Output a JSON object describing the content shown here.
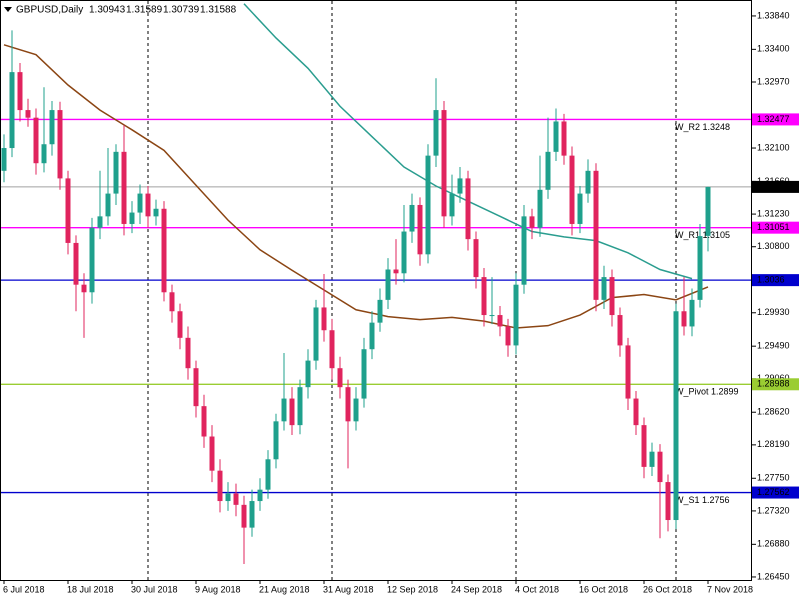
{
  "chart_data": {
    "type": "candlestick",
    "title": "GBPUSD,Daily",
    "categories": [
      "6 Jul 2018",
      null,
      null,
      null,
      null,
      null,
      null,
      null,
      "18 Jul 2018",
      null,
      null,
      null,
      null,
      null,
      null,
      null,
      "30 Jul 2018",
      null,
      null,
      null,
      null,
      null,
      null,
      null,
      "9 Aug 2018",
      null,
      null,
      null,
      null,
      null,
      null,
      null,
      "21 Aug 2018",
      null,
      null,
      null,
      null,
      null,
      null,
      null,
      "31 Aug 2018",
      null,
      null,
      null,
      null,
      null,
      null,
      null,
      "12 Sep 2018",
      null,
      null,
      null,
      null,
      null,
      null,
      null,
      "24 Sep 2018",
      null,
      null,
      null,
      null,
      null,
      null,
      null,
      "4 Oct 2018",
      null,
      null,
      null,
      null,
      null,
      null,
      null,
      "16 Oct 2018",
      null,
      null,
      null,
      null,
      null,
      null,
      null,
      "26 Oct 2018",
      null,
      null,
      null,
      null,
      null,
      null,
      null,
      "7 Nov 2018"
    ],
    "open": [
      1.318,
      1.321,
      1.331,
      1.326,
      1.325,
      1.319,
      1.3215,
      1.326,
      1.317,
      1.3085,
      1.303,
      1.302,
      1.3105,
      1.312,
      1.315,
      1.3205,
      1.311,
      1.3125,
      1.315,
      1.312,
      1.313,
      1.302,
      1.2995,
      1.296,
      1.292,
      1.287,
      1.283,
      1.2785,
      1.2745,
      1.2755,
      1.274,
      1.271,
      1.2745,
      1.276,
      1.28,
      1.285,
      1.288,
      1.2845,
      1.2895,
      1.293,
      1.3,
      1.297,
      1.292,
      1.2895,
      1.285,
      1.288,
      1.2945,
      1.298,
      1.301,
      1.305,
      1.3045,
      1.31,
      1.3135,
      1.307,
      1.32,
      1.326,
      1.312,
      1.315,
      1.317,
      1.309,
      1.304,
      1.299,
      1.299,
      1.2975,
      1.295,
      1.303,
      1.312,
      1.3105,
      1.3155,
      1.3205,
      1.3245,
      1.32,
      1.311,
      1.315,
      1.318,
      1.301,
      1.304,
      1.299,
      1.295,
      1.288,
      1.2845,
      1.279,
      1.281,
      1.277,
      1.272,
      1.2995,
      1.2975,
      1.301,
      1.30943
    ],
    "high": [
      1.3228,
      1.3365,
      1.3322,
      1.3275,
      1.3262,
      1.329,
      1.3272,
      1.3271,
      1.318,
      1.3095,
      1.3045,
      1.3118,
      1.318,
      1.321,
      1.3215,
      1.324,
      1.314,
      1.3162,
      1.316,
      1.3142,
      1.314,
      1.303,
      1.3005,
      1.2975,
      1.293,
      1.2885,
      1.2845,
      1.28,
      1.277,
      1.2768,
      1.2752,
      1.276,
      1.2775,
      1.2812,
      1.286,
      1.294,
      1.2895,
      1.2905,
      1.2945,
      1.301,
      1.3044,
      1.2985,
      1.2935,
      1.2905,
      1.2895,
      1.296,
      1.2995,
      1.3025,
      1.3065,
      1.309,
      1.3135,
      1.315,
      1.3145,
      1.3215,
      1.3302,
      1.3272,
      1.3175,
      1.3185,
      1.318,
      1.31,
      1.3052,
      1.304,
      1.3002,
      1.2985,
      1.3045,
      1.3135,
      1.313,
      1.32,
      1.325,
      1.3262,
      1.3255,
      1.3212,
      1.316,
      1.3195,
      1.319,
      1.3055,
      1.305,
      1.3,
      1.296,
      1.289,
      1.2855,
      1.2822,
      1.282,
      1.278,
      1.3005,
      1.304,
      1.3025,
      1.311,
      1.31589
    ],
    "low": [
      1.3165,
      1.3198,
      1.3245,
      1.3238,
      1.3175,
      1.3178,
      1.32,
      1.3155,
      1.307,
      1.2995,
      1.296,
      1.3005,
      1.309,
      1.3108,
      1.3135,
      1.3095,
      1.3098,
      1.311,
      1.3105,
      1.3108,
      1.3008,
      1.298,
      1.2945,
      1.2905,
      1.2855,
      1.2815,
      1.277,
      1.273,
      1.2732,
      1.2725,
      1.2662,
      1.2698,
      1.2732,
      1.2748,
      1.2788,
      1.2838,
      1.2832,
      1.2833,
      1.288,
      1.2918,
      1.2955,
      1.2905,
      1.288,
      1.2788,
      1.2838,
      1.2868,
      1.2932,
      1.2968,
      1.2998,
      1.303,
      1.3033,
      1.3085,
      1.3055,
      1.3058,
      1.3185,
      1.3105,
      1.3108,
      1.3138,
      1.3075,
      1.3025,
      1.2975,
      1.2978,
      1.2962,
      1.2935,
      1.2938,
      1.3018,
      1.309,
      1.3093,
      1.3143,
      1.3193,
      1.3188,
      1.3095,
      1.3098,
      1.3138,
      1.2995,
      1.2998,
      1.2975,
      1.2935,
      1.2865,
      1.2832,
      1.2775,
      1.2778,
      1.2696,
      1.2705,
      1.2708,
      1.2963,
      1.2962,
      1.3,
      1.30739
    ],
    "close": [
      1.321,
      1.331,
      1.326,
      1.325,
      1.319,
      1.3215,
      1.326,
      1.317,
      1.3085,
      1.303,
      1.302,
      1.3105,
      1.312,
      1.315,
      1.3205,
      1.311,
      1.3125,
      1.315,
      1.312,
      1.313,
      1.302,
      1.2995,
      1.296,
      1.292,
      1.287,
      1.283,
      1.2785,
      1.2745,
      1.2755,
      1.274,
      1.271,
      1.2745,
      1.276,
      1.28,
      1.285,
      1.288,
      1.2845,
      1.2895,
      1.293,
      1.3,
      1.297,
      1.292,
      1.2895,
      1.285,
      1.288,
      1.2945,
      1.298,
      1.301,
      1.305,
      1.3045,
      1.31,
      1.3135,
      1.307,
      1.32,
      1.326,
      1.312,
      1.315,
      1.317,
      1.309,
      1.304,
      1.299,
      1.299,
      1.2975,
      1.295,
      1.303,
      1.312,
      1.3105,
      1.3155,
      1.3205,
      1.3245,
      1.32,
      1.311,
      1.315,
      1.318,
      1.301,
      1.304,
      1.299,
      1.295,
      1.288,
      1.2845,
      1.279,
      1.281,
      1.277,
      1.272,
      1.2995,
      1.2975,
      1.301,
      1.3094,
      1.31588
    ],
    "up_color": "#1fa08c",
    "down_color": "#e0245e",
    "ylim": [
      1.2641,
      1.3405
    ],
    "yticks": [
      {
        "value": 1.3384,
        "label": "1.33840"
      },
      {
        "value": 1.334,
        "label": "1.33400"
      },
      {
        "value": 1.3297,
        "label": "1.32970"
      },
      {
        "value": 1.321,
        "label": "1.32100"
      },
      {
        "value": 1.3166,
        "label": "1.31660"
      },
      {
        "value": 1.3123,
        "label": "1.31230"
      },
      {
        "value": 1.308,
        "label": "1.30800"
      },
      {
        "value": 1.2993,
        "label": "1.29930"
      },
      {
        "value": 1.2949,
        "label": "1.29490"
      },
      {
        "value": 1.2906,
        "label": "1.29060"
      },
      {
        "value": 1.2862,
        "label": "1.28620"
      },
      {
        "value": 1.2819,
        "label": "1.28190"
      },
      {
        "value": 1.2775,
        "label": "1.27750"
      },
      {
        "value": 1.2732,
        "label": "1.27320"
      },
      {
        "value": 1.2688,
        "label": "1.26880"
      },
      {
        "value": 1.2645,
        "label": "1.26450"
      }
    ],
    "moving_averages": [
      {
        "color": "#2a9d8f",
        "x": [
          30,
          34,
          38,
          42,
          46,
          50,
          54,
          58,
          62,
          66,
          70,
          74,
          78,
          82,
          86
        ],
        "values": [
          1.34,
          1.3355,
          1.3315,
          1.3265,
          1.3225,
          1.3185,
          1.316,
          1.314,
          1.312,
          1.31,
          1.3093,
          1.3088,
          1.3072,
          1.305,
          1.3038
        ]
      },
      {
        "color": "#8b4513",
        "x": [
          0,
          4,
          8,
          12,
          16,
          20,
          24,
          28,
          32,
          36,
          40,
          44,
          48,
          52,
          56,
          60,
          64,
          68,
          72,
          76,
          80,
          84,
          88
        ],
        "values": [
          1.3346,
          1.3333,
          1.3293,
          1.326,
          1.3234,
          1.3207,
          1.3161,
          1.3115,
          1.3076,
          1.3049,
          1.3023,
          1.2997,
          1.2988,
          1.2984,
          1.2987,
          1.2982,
          1.2973,
          1.2976,
          1.299,
          1.3013,
          1.3017,
          1.301,
          1.3027
        ]
      }
    ],
    "levels": [
      {
        "value": 1.32477,
        "color": "#ff00ff",
        "annotation": "W_R2 1.3248"
      },
      {
        "value": 1.31051,
        "color": "#ff00ff",
        "annotation": "W_R1 1.3105"
      },
      {
        "value": 1.3036,
        "color": "#0000cd"
      },
      {
        "value": 1.28988,
        "color": "#9acd32",
        "annotation": "W_Pivot 1.2899"
      },
      {
        "value": 1.27562,
        "color": "#0000cd",
        "annotation": "W_S1 1.2756"
      }
    ],
    "price_line_color": "#a0a0a0"
  }
}
